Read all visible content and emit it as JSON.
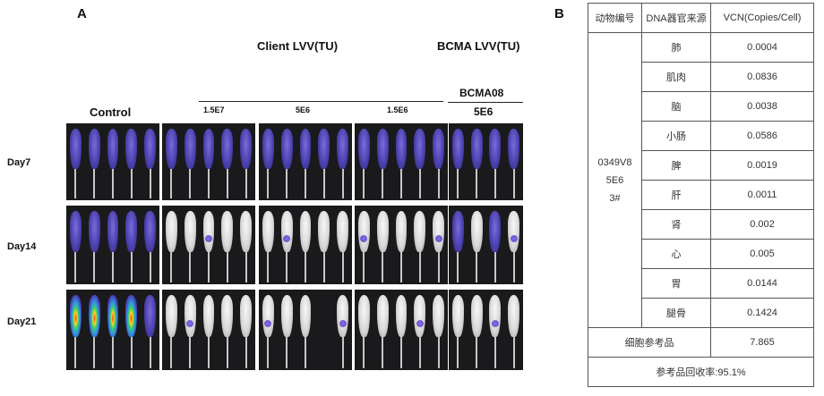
{
  "panel_a": {
    "letter": "A",
    "client_title": "Client LVV(TU)",
    "bcma_title": "BCMA LVV(TU)",
    "bcma_sub1": "BCMA08",
    "bcma_sub2": "5E6",
    "control_label": "Control",
    "dose_labels": [
      "1.5E7",
      "5E6",
      "1.5E6"
    ],
    "day_labels": [
      "Day7",
      "Day14",
      "Day21"
    ]
  },
  "panel_b": {
    "letter": "B",
    "headers": [
      "动物编号",
      "DNA器官来源",
      "VCN(Copies/Cell)"
    ],
    "animal_id_lines": [
      "0349V8",
      "5E6",
      "3#"
    ],
    "rows": [
      {
        "organ": "肺",
        "vcn": "0.0004"
      },
      {
        "organ": "肌肉",
        "vcn": "0.0836"
      },
      {
        "organ": "脑",
        "vcn": "0.0038"
      },
      {
        "organ": "小肠",
        "vcn": "0.0586"
      },
      {
        "organ": "脾",
        "vcn": "0.0019"
      },
      {
        "organ": "肝",
        "vcn": "0.0011"
      },
      {
        "organ": "肾",
        "vcn": "0.002"
      },
      {
        "organ": "心",
        "vcn": "0.005"
      },
      {
        "organ": "胃",
        "vcn": "0.0144"
      },
      {
        "organ": "腿骨",
        "vcn": "0.1424"
      }
    ],
    "reference_label": "细胞参考品",
    "reference_value": "7.865",
    "recovery_text": "参考品回收率:95.1%"
  }
}
